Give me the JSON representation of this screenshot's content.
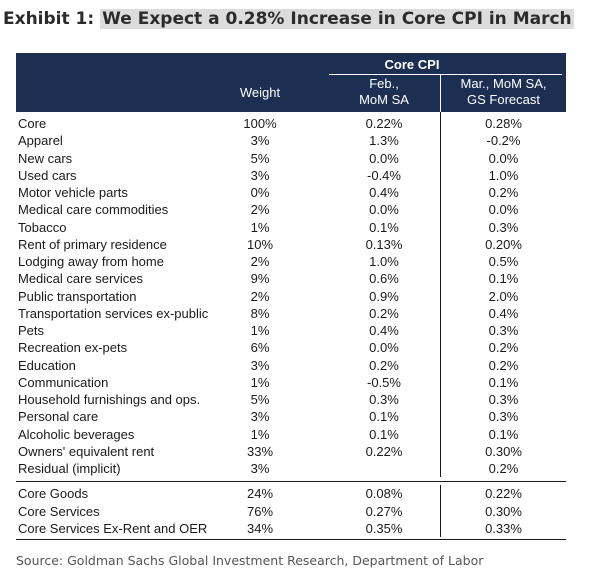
{
  "title": {
    "prefix": "Exhibit 1:",
    "highlight": "We Expect a 0.28% Increase in Core CPI in March"
  },
  "header": {
    "group": "Core CPI",
    "weight": "Weight",
    "feb": [
      "Feb.,",
      "MoM SA"
    ],
    "mar": [
      "Mar., MoM SA,",
      "GS Forecast"
    ]
  },
  "rows": [
    {
      "label": "Core",
      "weight": "100%",
      "feb": "0.22%",
      "mar": "0.28%"
    },
    {
      "label": "Apparel",
      "weight": "3%",
      "feb": "1.3%",
      "mar": "-0.2%"
    },
    {
      "label": "New cars",
      "weight": "5%",
      "feb": "0.0%",
      "mar": "0.0%"
    },
    {
      "label": "Used cars",
      "weight": "3%",
      "feb": "-0.4%",
      "mar": "1.0%"
    },
    {
      "label": "Motor vehicle parts",
      "weight": "0%",
      "feb": "0.4%",
      "mar": "0.2%"
    },
    {
      "label": "Medical care commodities",
      "weight": "2%",
      "feb": "0.0%",
      "mar": "0.0%"
    },
    {
      "label": "Tobacco",
      "weight": "1%",
      "feb": "0.1%",
      "mar": "0.3%"
    },
    {
      "label": "Rent of primary residence",
      "weight": "10%",
      "feb": "0.13%",
      "mar": "0.20%"
    },
    {
      "label": "Lodging away from home",
      "weight": "2%",
      "feb": "1.0%",
      "mar": "0.5%"
    },
    {
      "label": "Medical care services",
      "weight": "9%",
      "feb": "0.6%",
      "mar": "0.1%"
    },
    {
      "label": "Public transportation",
      "weight": "2%",
      "feb": "0.9%",
      "mar": "2.0%"
    },
    {
      "label": "Transportation services ex-public",
      "weight": "8%",
      "feb": "0.2%",
      "mar": "0.4%"
    },
    {
      "label": "Pets",
      "weight": "1%",
      "feb": "0.4%",
      "mar": "0.3%"
    },
    {
      "label": "Recreation ex-pets",
      "weight": "6%",
      "feb": "0.0%",
      "mar": "0.2%"
    },
    {
      "label": "Education",
      "weight": "3%",
      "feb": "0.2%",
      "mar": "0.2%"
    },
    {
      "label": "Communication",
      "weight": "1%",
      "feb": "-0.5%",
      "mar": "0.1%"
    },
    {
      "label": "Household furnishings and ops.",
      "weight": "5%",
      "feb": "0.3%",
      "mar": "0.3%"
    },
    {
      "label": "Personal care",
      "weight": "3%",
      "feb": "0.1%",
      "mar": "0.3%"
    },
    {
      "label": "Alcoholic beverages",
      "weight": "1%",
      "feb": "0.1%",
      "mar": "0.1%"
    },
    {
      "label": "Owners' equivalent rent",
      "weight": "33%",
      "feb": "0.22%",
      "mar": "0.30%"
    },
    {
      "label": "Residual (implicit)",
      "weight": "3%",
      "feb": "",
      "mar": "0.2%"
    }
  ],
  "summary": [
    {
      "label": "Core Goods",
      "weight": "24%",
      "feb": "0.08%",
      "mar": "0.22%"
    },
    {
      "label": "Core Services",
      "weight": "76%",
      "feb": "0.27%",
      "mar": "0.30%"
    },
    {
      "label": "Core Services Ex-Rent and OER",
      "weight": "34%",
      "feb": "0.35%",
      "mar": "0.33%"
    }
  ],
  "source": "Source: Goldman Sachs Global Investment Research, Department of Labor",
  "colors": {
    "header_bg": "#1c2f53",
    "title_highlight": "#dcdcdc"
  }
}
